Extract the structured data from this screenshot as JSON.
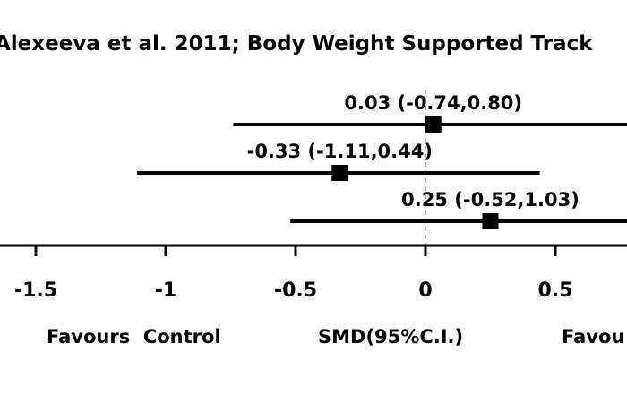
{
  "chart_data": {
    "type": "forest",
    "title": "Alexeeva et al. 2011; Body Weight Supported Track",
    "xlabel": "SMD(95%C.I.)",
    "favours_left": "Favours  Control",
    "favours_right": "Favou",
    "xlim": [
      -1.65,
      0.78
    ],
    "xticks": [
      -1.5,
      -1,
      -0.5,
      0,
      0.5
    ],
    "xtick_labels": [
      "-1.5",
      "-1",
      "-0.5",
      "0",
      "0.5"
    ],
    "reference_line": 0,
    "rows": [
      {
        "estimate": 0.03,
        "lower": -0.74,
        "upper": 0.8,
        "label": "0.03 (-0.74,0.80)"
      },
      {
        "estimate": -0.33,
        "lower": -1.11,
        "upper": 0.44,
        "label": "-0.33 (-1.11,0.44)"
      },
      {
        "estimate": 0.25,
        "lower": -0.52,
        "upper": 1.03,
        "label": "0.25 (-0.52,1.03)"
      }
    ],
    "colors": {
      "marks": "#000000",
      "reference": "#a6a6a6"
    }
  }
}
